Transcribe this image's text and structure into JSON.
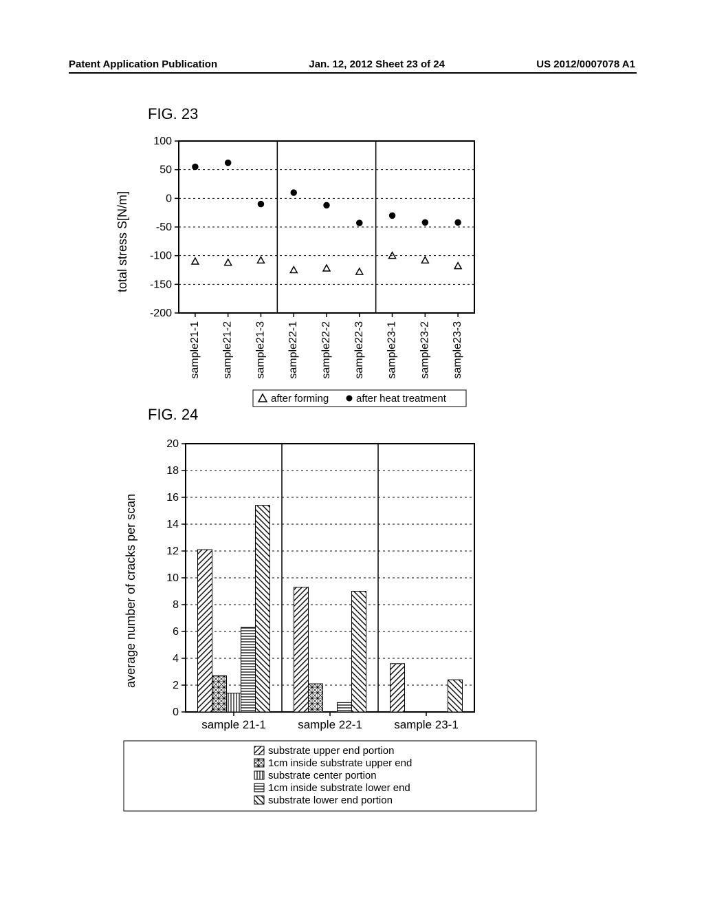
{
  "header": {
    "left": "Patent Application Publication",
    "center": "Jan. 12, 2012  Sheet 23 of 24",
    "right": "US 2012/0007078 A1"
  },
  "fig23": {
    "label": "FIG. 23",
    "type": "scatter",
    "ylabel": "total stress S[N/m]",
    "ylabel_fontsize": 18,
    "ylim": [
      -200,
      100
    ],
    "ytick_step": 50,
    "yticks": [
      -200,
      -150,
      -100,
      -50,
      0,
      50,
      100
    ],
    "x_categories": [
      "sample21-1",
      "sample21-2",
      "sample21-3",
      "sample22-1",
      "sample22-2",
      "sample22-3",
      "sample23-1",
      "sample23-2",
      "sample23-3"
    ],
    "group_sizes": [
      3,
      3,
      3
    ],
    "series": [
      {
        "name": "after forming",
        "marker": "triangle",
        "filled": false,
        "color": "#000000",
        "values": [
          -110,
          -112,
          -108,
          -125,
          -122,
          -128,
          -100,
          -108,
          -118
        ]
      },
      {
        "name": "after heat treatment",
        "marker": "circle",
        "filled": true,
        "color": "#000000",
        "values": [
          55,
          62,
          -10,
          10,
          -12,
          -43,
          -30,
          -42,
          -42
        ]
      }
    ],
    "grid_color": "#000000",
    "grid_dash": "3,4",
    "axis_color": "#000000",
    "background_color": "#ffffff",
    "marker_size": 8,
    "legend": {
      "items": [
        {
          "marker": "triangle",
          "filled": false,
          "label": "after forming"
        },
        {
          "marker": "circle",
          "filled": true,
          "label": "after heat treatment"
        }
      ]
    }
  },
  "fig24": {
    "label": "FIG. 24",
    "type": "bar",
    "ylabel": "average number of cracks per scan",
    "ylabel_fontsize": 18,
    "ylim": [
      0,
      20
    ],
    "ytick_step": 2,
    "yticks": [
      0,
      2,
      4,
      6,
      8,
      10,
      12,
      14,
      16,
      18,
      20
    ],
    "x_categories": [
      "sample 21-1",
      "sample 22-1",
      "sample 23-1"
    ],
    "series": [
      {
        "name": "substrate upper end portion",
        "pattern": "diag-fwd",
        "values": [
          12.1,
          9.3,
          3.6
        ]
      },
      {
        "name": "1cm inside substrate upper end",
        "pattern": "grid",
        "values": [
          2.7,
          2.1,
          0
        ]
      },
      {
        "name": "substrate center portion",
        "pattern": "vert",
        "values": [
          1.4,
          0,
          0
        ]
      },
      {
        "name": "1cm inside substrate lower end",
        "pattern": "horz",
        "values": [
          6.3,
          0.7,
          0
        ]
      },
      {
        "name": "substrate lower end portion",
        "pattern": "diag-bwd",
        "values": [
          15.4,
          9.0,
          2.4
        ]
      }
    ],
    "bar_width_ratio": 0.15,
    "grid_color": "#000000",
    "grid_dash": "3,4",
    "axis_color": "#000000",
    "background_color": "#ffffff"
  }
}
